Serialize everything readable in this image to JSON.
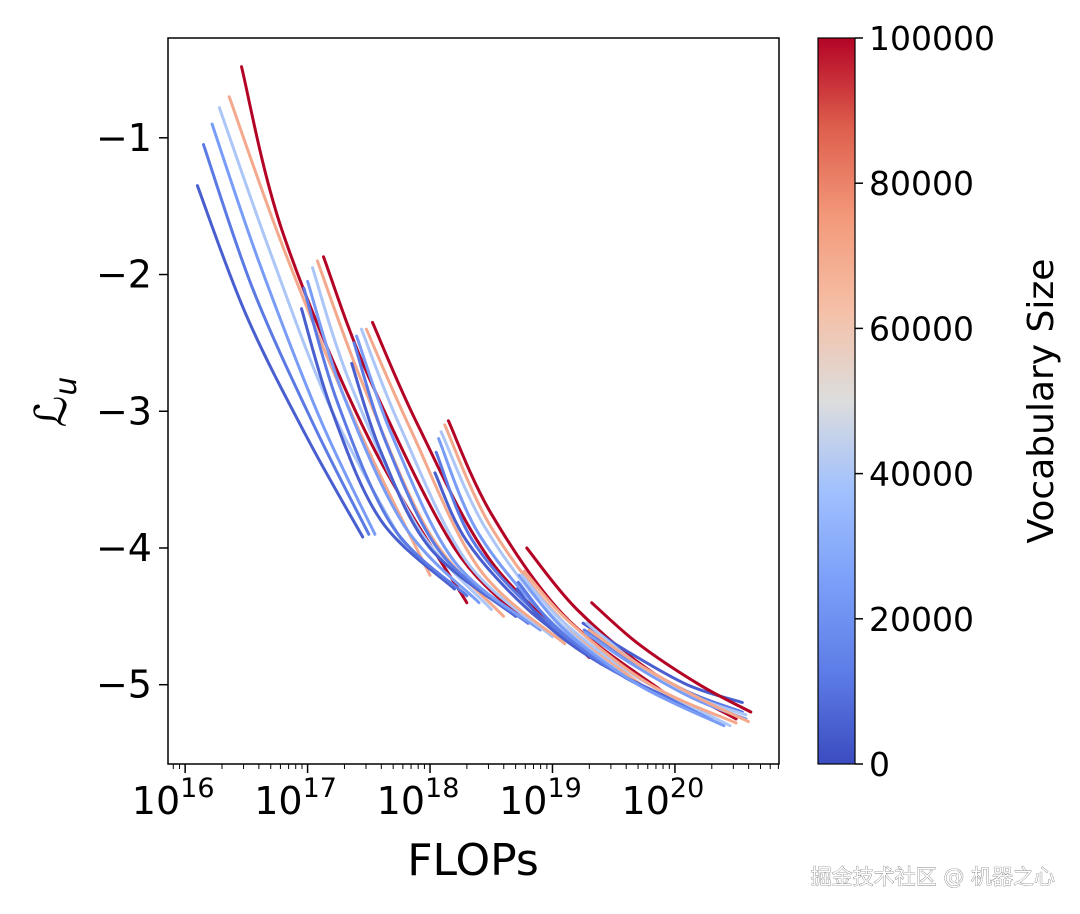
{
  "chart_data": {
    "type": "line",
    "title": "",
    "xlabel": "FLOPs",
    "ylabel": "ℒ",
    "ylabel_sub": "u",
    "xscale": "log",
    "xlim_log10": [
      15.86,
      20.85
    ],
    "ylim": [
      -5.58,
      -0.27
    ],
    "xticks": [
      {
        "exp": "16",
        "base": "10",
        "value": 16
      },
      {
        "exp": "17",
        "base": "10",
        "value": 17
      },
      {
        "exp": "18",
        "base": "10",
        "value": 18
      },
      {
        "exp": "19",
        "base": "10",
        "value": 19
      },
      {
        "exp": "20",
        "base": "10",
        "value": 20
      }
    ],
    "yticks": [
      {
        "label": "−1",
        "value": -1
      },
      {
        "label": "−2",
        "value": -2
      },
      {
        "label": "−3",
        "value": -3
      },
      {
        "label": "−4",
        "value": -4
      },
      {
        "label": "−5",
        "value": -5
      }
    ],
    "grid": false,
    "colorbar": {
      "label": "Vocabulary Size",
      "range": [
        0,
        100000
      ],
      "colormap": "coolwarm",
      "stops": [
        "#3b4cc0",
        "#5d7ce6",
        "#7b9ff9",
        "#a0c0fe",
        "#dcdddd",
        "#f5c0a7",
        "#f49a7b",
        "#de604d",
        "#b40426"
      ],
      "ticks": [
        {
          "label": "0",
          "value": 0
        },
        {
          "label": "20000",
          "value": 20000
        },
        {
          "label": "40000",
          "value": 40000
        },
        {
          "label": "60000",
          "value": 60000
        },
        {
          "label": "80000",
          "value": 80000
        },
        {
          "label": "100000",
          "value": 100000
        }
      ]
    },
    "series_note": "x values are log10(FLOPs)",
    "series": [
      {
        "vocab": 5000,
        "points": [
          [
            16.1,
            -1.35
          ],
          [
            16.5,
            -2.3
          ],
          [
            17.0,
            -3.2
          ],
          [
            17.45,
            -3.92
          ]
        ]
      },
      {
        "vocab": 12000,
        "points": [
          [
            16.15,
            -1.05
          ],
          [
            16.55,
            -2.1
          ],
          [
            17.05,
            -3.1
          ],
          [
            17.5,
            -3.9
          ]
        ]
      },
      {
        "vocab": 24000,
        "points": [
          [
            16.22,
            -0.9
          ],
          [
            16.6,
            -1.9
          ],
          [
            17.1,
            -3.05
          ],
          [
            17.55,
            -3.9
          ]
        ]
      },
      {
        "vocab": 40000,
        "points": [
          [
            16.28,
            -0.78
          ],
          [
            16.7,
            -1.85
          ],
          [
            17.2,
            -3.0
          ],
          [
            17.8,
            -4.0
          ]
        ]
      },
      {
        "vocab": 70000,
        "points": [
          [
            16.36,
            -0.7
          ],
          [
            16.8,
            -1.8
          ],
          [
            17.4,
            -3.1
          ],
          [
            18.0,
            -4.2
          ]
        ]
      },
      {
        "vocab": 100000,
        "points": [
          [
            16.46,
            -0.48
          ],
          [
            16.8,
            -1.7
          ],
          [
            17.5,
            -3.2
          ],
          [
            18.3,
            -4.4
          ]
        ]
      },
      {
        "vocab": 5000,
        "points": [
          [
            16.95,
            -2.25
          ],
          [
            17.2,
            -3.0
          ],
          [
            17.6,
            -3.8
          ],
          [
            18.2,
            -4.3
          ]
        ]
      },
      {
        "vocab": 12000,
        "points": [
          [
            16.97,
            -2.1
          ],
          [
            17.25,
            -2.95
          ],
          [
            17.7,
            -3.85
          ],
          [
            18.3,
            -4.35
          ]
        ]
      },
      {
        "vocab": 24000,
        "points": [
          [
            17.0,
            -2.05
          ],
          [
            17.3,
            -2.9
          ],
          [
            17.8,
            -3.85
          ],
          [
            18.4,
            -4.4
          ]
        ]
      },
      {
        "vocab": 40000,
        "points": [
          [
            17.04,
            -1.95
          ],
          [
            17.35,
            -2.8
          ],
          [
            17.9,
            -3.85
          ],
          [
            18.5,
            -4.45
          ]
        ]
      },
      {
        "vocab": 70000,
        "points": [
          [
            17.08,
            -1.9
          ],
          [
            17.45,
            -2.8
          ],
          [
            18.0,
            -3.9
          ],
          [
            18.6,
            -4.5
          ]
        ]
      },
      {
        "vocab": 100000,
        "points": [
          [
            17.13,
            -1.87
          ],
          [
            17.5,
            -2.75
          ],
          [
            18.2,
            -4.0
          ],
          [
            18.8,
            -4.55
          ]
        ]
      },
      {
        "vocab": 5000,
        "points": [
          [
            17.36,
            -2.65
          ],
          [
            17.6,
            -3.3
          ],
          [
            18.0,
            -4.0
          ],
          [
            18.7,
            -4.5
          ]
        ]
      },
      {
        "vocab": 12000,
        "points": [
          [
            17.38,
            -2.5
          ],
          [
            17.65,
            -3.25
          ],
          [
            18.1,
            -4.05
          ],
          [
            18.8,
            -4.55
          ]
        ]
      },
      {
        "vocab": 24000,
        "points": [
          [
            17.4,
            -2.45
          ],
          [
            17.7,
            -3.2
          ],
          [
            18.2,
            -4.1
          ],
          [
            18.9,
            -4.6
          ]
        ]
      },
      {
        "vocab": 40000,
        "points": [
          [
            17.44,
            -2.4
          ],
          [
            17.75,
            -3.1
          ],
          [
            18.3,
            -4.1
          ],
          [
            19.0,
            -4.65
          ]
        ]
      },
      {
        "vocab": 70000,
        "points": [
          [
            17.48,
            -2.4
          ],
          [
            17.85,
            -3.15
          ],
          [
            18.4,
            -4.15
          ],
          [
            19.1,
            -4.7
          ]
        ]
      },
      {
        "vocab": 100000,
        "points": [
          [
            17.53,
            -2.35
          ],
          [
            17.9,
            -3.1
          ],
          [
            18.5,
            -4.1
          ],
          [
            19.3,
            -4.8
          ]
        ]
      },
      {
        "vocab": 5000,
        "points": [
          [
            18.04,
            -3.45
          ],
          [
            18.3,
            -3.95
          ],
          [
            18.8,
            -4.45
          ],
          [
            19.4,
            -4.85
          ]
        ]
      },
      {
        "vocab": 12000,
        "points": [
          [
            18.05,
            -3.3
          ],
          [
            18.35,
            -3.95
          ],
          [
            18.9,
            -4.5
          ],
          [
            19.5,
            -4.9
          ]
        ]
      },
      {
        "vocab": 24000,
        "points": [
          [
            18.07,
            -3.2
          ],
          [
            18.4,
            -3.9
          ],
          [
            19.0,
            -4.55
          ],
          [
            19.6,
            -4.95
          ]
        ]
      },
      {
        "vocab": 40000,
        "points": [
          [
            18.09,
            -3.15
          ],
          [
            18.45,
            -3.85
          ],
          [
            19.0,
            -4.5
          ],
          [
            19.7,
            -5.0
          ]
        ]
      },
      {
        "vocab": 70000,
        "points": [
          [
            18.12,
            -3.1
          ],
          [
            18.5,
            -3.85
          ],
          [
            19.1,
            -4.55
          ],
          [
            19.8,
            -5.05
          ]
        ]
      },
      {
        "vocab": 100000,
        "points": [
          [
            18.15,
            -3.07
          ],
          [
            18.5,
            -3.75
          ],
          [
            19.1,
            -4.5
          ],
          [
            19.9,
            -5.05
          ]
        ]
      },
      {
        "vocab": 5000,
        "points": [
          [
            18.71,
            -4.3
          ],
          [
            19.0,
            -4.6
          ],
          [
            19.5,
            -4.9
          ],
          [
            20.2,
            -5.2
          ]
        ]
      },
      {
        "vocab": 12000,
        "points": [
          [
            18.72,
            -4.25
          ],
          [
            19.05,
            -4.6
          ],
          [
            19.6,
            -4.95
          ],
          [
            20.3,
            -5.25
          ]
        ]
      },
      {
        "vocab": 24000,
        "points": [
          [
            18.73,
            -4.2
          ],
          [
            19.1,
            -4.6
          ],
          [
            19.7,
            -5.0
          ],
          [
            20.4,
            -5.3
          ]
        ]
      },
      {
        "vocab": 40000,
        "points": [
          [
            18.75,
            -4.2
          ],
          [
            19.1,
            -4.55
          ],
          [
            19.7,
            -4.95
          ],
          [
            20.45,
            -5.3
          ]
        ]
      },
      {
        "vocab": 70000,
        "points": [
          [
            18.77,
            -4.17
          ],
          [
            19.15,
            -4.55
          ],
          [
            19.8,
            -5.0
          ],
          [
            20.5,
            -5.28
          ]
        ]
      },
      {
        "vocab": 100000,
        "points": [
          [
            18.79,
            -4.0
          ],
          [
            19.2,
            -4.45
          ],
          [
            19.8,
            -4.9
          ],
          [
            20.5,
            -5.25
          ]
        ]
      },
      {
        "vocab": 5000,
        "points": [
          [
            19.25,
            -4.55
          ],
          [
            19.6,
            -4.75
          ],
          [
            20.1,
            -5.0
          ],
          [
            20.55,
            -5.13
          ]
        ]
      },
      {
        "vocab": 12000,
        "points": [
          [
            19.26,
            -4.6
          ],
          [
            19.6,
            -4.8
          ],
          [
            20.1,
            -5.05
          ],
          [
            20.55,
            -5.2
          ]
        ]
      },
      {
        "vocab": 24000,
        "points": [
          [
            19.27,
            -4.62
          ],
          [
            19.65,
            -4.85
          ],
          [
            20.15,
            -5.1
          ],
          [
            20.58,
            -5.25
          ]
        ]
      },
      {
        "vocab": 40000,
        "points": [
          [
            19.28,
            -4.55
          ],
          [
            19.7,
            -4.85
          ],
          [
            20.2,
            -5.1
          ],
          [
            20.58,
            -5.22
          ]
        ]
      },
      {
        "vocab": 70000,
        "points": [
          [
            19.3,
            -4.6
          ],
          [
            19.7,
            -4.85
          ],
          [
            20.2,
            -5.1
          ],
          [
            20.6,
            -5.27
          ]
        ]
      },
      {
        "vocab": 100000,
        "points": [
          [
            19.32,
            -4.4
          ],
          [
            19.7,
            -4.7
          ],
          [
            20.2,
            -5.0
          ],
          [
            20.62,
            -5.2
          ]
        ]
      }
    ]
  },
  "watermark": "掘金技术社区 @ 机器之心"
}
